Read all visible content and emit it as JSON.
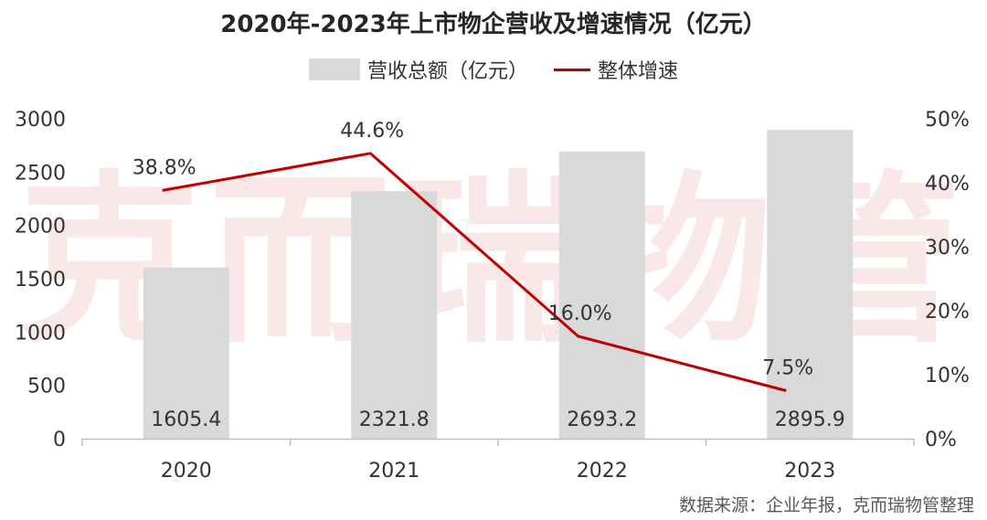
{
  "title": "2020年-2023年上市物企营收及增速情况（亿元）",
  "watermark": "克而瑞物管",
  "source": "数据来源：企业年报，克而瑞物管整理",
  "colors": {
    "bar": "#d9d9d9",
    "line": "#c00000",
    "axis": "#bfbfbf",
    "text": "#333333",
    "watermark": "#f6d6d6"
  },
  "chart_data": {
    "type": "bar",
    "categories": [
      "2020",
      "2021",
      "2022",
      "2023"
    ],
    "series": [
      {
        "name": "营收总额（亿元）",
        "type": "bar",
        "axis": "left",
        "values": [
          1605.4,
          2321.8,
          2693.2,
          2895.9
        ],
        "labels": [
          "1605.4",
          "2321.8",
          "2693.2",
          "2895.9"
        ]
      },
      {
        "name": "整体增速",
        "type": "line",
        "axis": "right",
        "values": [
          38.8,
          44.6,
          16.0,
          7.5
        ],
        "labels": [
          "38.8%",
          "44.6%",
          "16.0%",
          "7.5%"
        ]
      }
    ],
    "ylim": [
      0,
      3000
    ],
    "yticks": [
      "0",
      "500",
      "1000",
      "1500",
      "2000",
      "2500",
      "3000"
    ],
    "y2lim": [
      0,
      50
    ],
    "y2ticks": [
      "0%",
      "10%",
      "20%",
      "30%",
      "40%",
      "50%"
    ],
    "legend_position": "top-center",
    "grid": false
  }
}
